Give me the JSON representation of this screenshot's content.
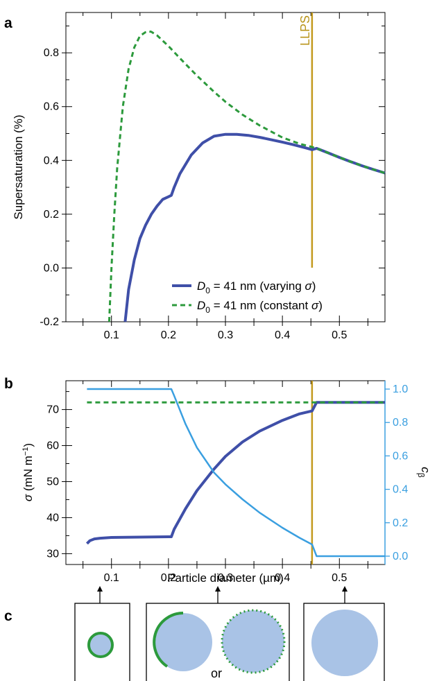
{
  "panels": {
    "a": "a",
    "b": "b",
    "c": "c"
  },
  "colors": {
    "blue": "#3f4fa8",
    "green": "#2c9a3c",
    "light_blue": "#3a9fe0",
    "gold": "#c39a1e",
    "particle": "#a9c3e6"
  },
  "chart_data": [
    {
      "type": "line",
      "xlabel": "",
      "ylabel": "Supersaturation (%)",
      "xlim": [
        0.02,
        0.58
      ],
      "ylim": [
        -0.2,
        0.95
      ],
      "x_ticks": [
        "0.1",
        "0.2",
        "0.3",
        "0.4",
        "0.5"
      ],
      "y_ticks": [
        "-0.2",
        "0.0",
        "0.2",
        "0.4",
        "0.6",
        "0.8"
      ],
      "series": [
        {
          "legend_prefix": "D",
          "legend_sub": "0",
          "legend_rest": " = 41 nm (varying ",
          "legend_sym": "σ",
          "legend_close": ")",
          "style": "solid",
          "color": "#3f4fa8",
          "x": [
            0.124,
            0.13,
            0.14,
            0.15,
            0.16,
            0.17,
            0.18,
            0.19,
            0.2,
            0.205,
            0.21,
            0.22,
            0.24,
            0.26,
            0.28,
            0.3,
            0.32,
            0.34,
            0.36,
            0.38,
            0.4,
            0.42,
            0.44,
            0.452,
            0.46,
            0.48,
            0.5,
            0.52,
            0.54,
            0.56,
            0.58
          ],
          "y": [
            -0.2,
            -0.08,
            0.03,
            0.11,
            0.16,
            0.2,
            0.23,
            0.255,
            0.265,
            0.27,
            0.3,
            0.35,
            0.42,
            0.465,
            0.49,
            0.497,
            0.497,
            0.493,
            0.486,
            0.477,
            0.468,
            0.458,
            0.447,
            0.44,
            0.445,
            0.428,
            0.411,
            0.395,
            0.38,
            0.366,
            0.353
          ]
        },
        {
          "legend_prefix": "D",
          "legend_sub": "0",
          "legend_rest": " = 41 nm (constant ",
          "legend_sym": "σ",
          "legend_close": ")",
          "style": "dashed",
          "color": "#2c9a3c",
          "x": [
            0.096,
            0.1,
            0.105,
            0.11,
            0.12,
            0.13,
            0.14,
            0.15,
            0.16,
            0.165,
            0.17,
            0.18,
            0.2,
            0.22,
            0.25,
            0.28,
            0.3,
            0.33,
            0.36,
            0.4,
            0.43,
            0.45,
            0.46,
            0.48,
            0.5,
            0.52,
            0.54,
            0.56,
            0.58
          ],
          "y": [
            -0.2,
            0.0,
            0.2,
            0.37,
            0.6,
            0.74,
            0.82,
            0.863,
            0.877,
            0.88,
            0.878,
            0.865,
            0.825,
            0.78,
            0.715,
            0.655,
            0.618,
            0.57,
            0.53,
            0.485,
            0.462,
            0.451,
            0.445,
            0.428,
            0.411,
            0.395,
            0.38,
            0.366,
            0.353
          ]
        }
      ],
      "annotations": [
        {
          "label": "LLPS",
          "x": 0.452
        }
      ]
    },
    {
      "type": "line",
      "xlabel": "Particle diameter (µm)",
      "ylabel_sym": "σ",
      "ylabel_rest": " (mN m",
      "ylabel_sup": "−1",
      "ylabel_close": ")",
      "y2label_main": "c",
      "y2label_sub": "β",
      "xlim": [
        0.02,
        0.58
      ],
      "ylim": [
        27,
        78
      ],
      "y2lim": [
        -0.05,
        1.05
      ],
      "x_ticks": [
        "0.1",
        "0.2",
        "0.3",
        "0.4",
        "0.5"
      ],
      "y_ticks": [
        "30",
        "40",
        "50",
        "60",
        "70"
      ],
      "y2_ticks": [
        "0.0",
        "0.2",
        "0.4",
        "0.6",
        "0.8",
        "1.0"
      ],
      "series": [
        {
          "style": "solid",
          "color": "#3f4fa8",
          "axis": "left",
          "x": [
            0.057,
            0.062,
            0.07,
            0.08,
            0.1,
            0.15,
            0.2,
            0.205,
            0.21,
            0.23,
            0.25,
            0.28,
            0.3,
            0.33,
            0.36,
            0.4,
            0.43,
            0.452,
            0.46,
            0.5,
            0.58
          ],
          "y": [
            32.8,
            33.6,
            34.1,
            34.3,
            34.5,
            34.6,
            34.7,
            34.7,
            36.8,
            42.5,
            47.5,
            53.5,
            57.0,
            61.0,
            64.0,
            67.0,
            68.8,
            69.6,
            72.0,
            72.0,
            72.0
          ]
        },
        {
          "style": "dashed",
          "color": "#2c9a3c",
          "axis": "left",
          "x": [
            0.057,
            0.58
          ],
          "y": [
            72.0,
            72.0
          ]
        },
        {
          "style": "solid",
          "color": "#3a9fe0",
          "axis": "right",
          "x": [
            0.057,
            0.1,
            0.15,
            0.2,
            0.205,
            0.21,
            0.23,
            0.25,
            0.28,
            0.3,
            0.33,
            0.36,
            0.4,
            0.43,
            0.452,
            0.46,
            0.5,
            0.58
          ],
          "y": [
            1.0,
            1.0,
            1.0,
            1.0,
            1.0,
            0.96,
            0.79,
            0.65,
            0.5,
            0.43,
            0.34,
            0.26,
            0.17,
            0.11,
            0.07,
            0.0,
            0.0,
            0.0
          ]
        }
      ],
      "annotations": [
        {
          "x": 0.452
        }
      ]
    }
  ],
  "panel_c": {
    "or_label": "or",
    "boxes": [
      {
        "name": "small-particle-shell"
      },
      {
        "name": "partial-or-porous-shell"
      },
      {
        "name": "bare-particle"
      }
    ]
  }
}
